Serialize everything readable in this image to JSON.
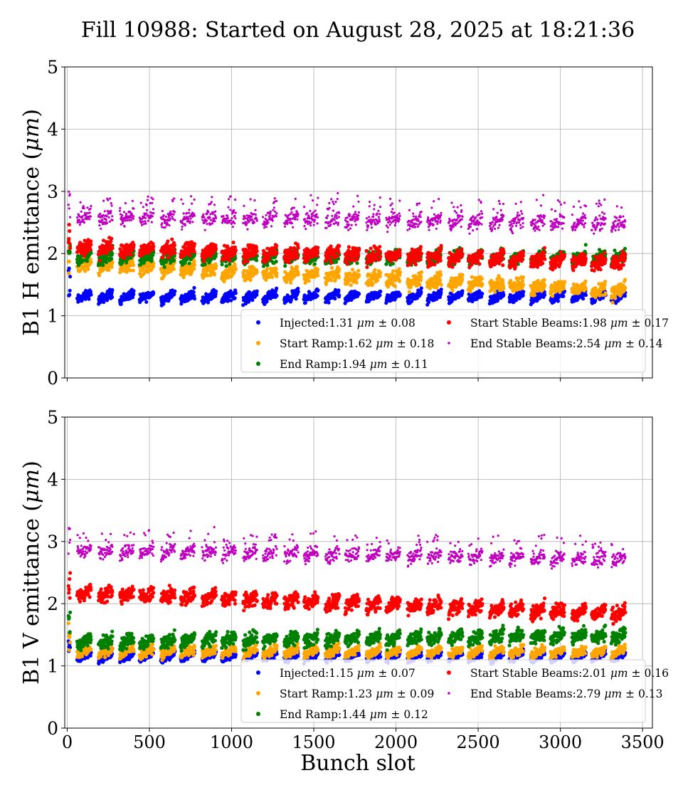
{
  "title": "Fill 10988: Started on August 28, 2025 at 18:21:36",
  "xlabel": "Bunch slot",
  "colors": {
    "injected": "#0000ff",
    "start_ramp": "#ffa500",
    "end_ramp": "#008000",
    "start_stable": "#ff0000",
    "end_stable": "#bf00bf"
  },
  "chart_data": [
    {
      "type": "scatter",
      "panel": "top",
      "ylabel_text": "B1 H emittance (",
      "ylabel_unit": "μm",
      "ylabel_close": ")",
      "xlim": [
        -15,
        3560
      ],
      "ylim": [
        0,
        5
      ],
      "xticks": [
        "0",
        "500",
        "1000",
        "1500",
        "2000",
        "2500",
        "3000",
        "3500"
      ],
      "xtick_values": [
        0,
        500,
        1000,
        1500,
        2000,
        2500,
        3000,
        3500
      ],
      "show_xtick_labels": false,
      "yticks": [
        "0",
        "1",
        "2",
        "3",
        "4",
        "5"
      ],
      "ytick_values": [
        0,
        1,
        2,
        3,
        4,
        5
      ],
      "grid": true,
      "legend_position": "lower-right",
      "train_starts": [
        60,
        190,
        320,
        440,
        570,
        690,
        820,
        940,
        1070,
        1190,
        1320,
        1440,
        1570,
        1690,
        1820,
        1940,
        2070,
        2190,
        2320,
        2440,
        2570,
        2690,
        2820,
        2940,
        3070,
        3190,
        3310
      ],
      "series": [
        {
          "key": "injected",
          "name": "Injected:",
          "value": "1.31",
          "std": "0.08",
          "mean": 1.31,
          "spread": 0.08,
          "drift": 0.0
        },
        {
          "key": "start_ramp",
          "name": "Start Ramp:",
          "value": "1.62",
          "std": "0.18",
          "mean": 1.62,
          "spread": 0.12,
          "drift": -0.45
        },
        {
          "key": "end_ramp",
          "name": "End Ramp:",
          "value": "1.94",
          "std": "0.11",
          "mean": 1.94,
          "spread": 0.11,
          "drift": 0.0
        },
        {
          "key": "start_stable",
          "name": "Start Stable Beams:",
          "value": "1.98",
          "std": "0.17",
          "mean": 1.98,
          "spread": 0.13,
          "drift": -0.25
        },
        {
          "key": "end_stable",
          "name": "End Stable Beams:",
          "value": "2.54",
          "std": "0.14",
          "mean": 2.54,
          "spread": 0.14,
          "drift": -0.1
        }
      ]
    },
    {
      "type": "scatter",
      "panel": "bottom",
      "ylabel_text": "B1 V emittance (",
      "ylabel_unit": "μm",
      "ylabel_close": ")",
      "xlim": [
        -15,
        3560
      ],
      "ylim": [
        0,
        5
      ],
      "xticks": [
        "0",
        "500",
        "1000",
        "1500",
        "2000",
        "2500",
        "3000",
        "3500"
      ],
      "xtick_values": [
        0,
        500,
        1000,
        1500,
        2000,
        2500,
        3000,
        3500
      ],
      "show_xtick_labels": true,
      "yticks": [
        "0",
        "1",
        "2",
        "3",
        "4",
        "5"
      ],
      "ytick_values": [
        0,
        1,
        2,
        3,
        4,
        5
      ],
      "grid": true,
      "legend_position": "lower-right",
      "train_starts": [
        60,
        190,
        320,
        440,
        570,
        690,
        820,
        940,
        1070,
        1190,
        1320,
        1440,
        1570,
        1690,
        1820,
        1940,
        2070,
        2190,
        2320,
        2440,
        2570,
        2690,
        2820,
        2940,
        3070,
        3190,
        3310
      ],
      "series": [
        {
          "key": "injected",
          "name": "Injected:",
          "value": "1.15",
          "std": "0.07",
          "mean": 1.15,
          "spread": 0.06,
          "drift": 0.0
        },
        {
          "key": "start_ramp",
          "name": "Start Ramp:",
          "value": "1.23",
          "std": "0.09",
          "mean": 1.23,
          "spread": 0.08,
          "drift": 0.0
        },
        {
          "key": "end_ramp",
          "name": "End Ramp:",
          "value": "1.44",
          "std": "0.12",
          "mean": 1.44,
          "spread": 0.12,
          "drift": 0.1
        },
        {
          "key": "start_stable",
          "name": "Start Stable Beams:",
          "value": "2.01",
          "std": "0.16",
          "mean": 2.01,
          "spread": 0.13,
          "drift": -0.35
        },
        {
          "key": "end_stable",
          "name": "End Stable Beams:",
          "value": "2.79",
          "std": "0.13",
          "mean": 2.79,
          "spread": 0.12,
          "drift": -0.15
        }
      ]
    }
  ]
}
